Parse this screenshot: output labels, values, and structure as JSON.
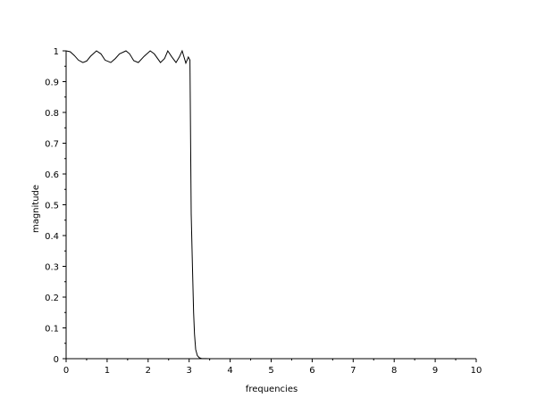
{
  "chart_data": {
    "type": "line",
    "title": "",
    "xlabel": "frequencies",
    "ylabel": "magnitude",
    "xlim": [
      0,
      10
    ],
    "ylim": [
      0,
      1
    ],
    "grid": false,
    "x_ticks": [
      "0",
      "1",
      "2",
      "3",
      "4",
      "5",
      "6",
      "7",
      "8",
      "9",
      "10"
    ],
    "y_ticks": [
      "0",
      "0.1",
      "0.2",
      "0.3",
      "0.4",
      "0.5",
      "0.6",
      "0.7",
      "0.8",
      "0.9",
      "1"
    ],
    "line_color": "#000000",
    "series": [
      {
        "x": [
          0,
          0.1,
          0.2,
          0.3,
          0.41,
          0.5,
          0.6,
          0.74,
          0.85,
          0.95,
          1.09,
          1.2,
          1.3,
          1.46,
          1.55,
          1.65,
          1.76,
          1.9,
          2.05,
          2.15,
          2.3,
          2.4,
          2.48,
          2.58,
          2.68,
          2.76,
          2.83,
          2.92,
          2.98,
          3.02,
          3.05,
          3.08,
          3.11,
          3.13,
          3.16,
          3.2,
          3.25,
          3.3,
          3.5,
          4,
          5,
          6,
          7,
          8,
          9,
          10
        ],
        "y": [
          1,
          0.997,
          0.985,
          0.97,
          0.962,
          0.967,
          0.983,
          1,
          0.99,
          0.97,
          0.962,
          0.975,
          0.99,
          1,
          0.99,
          0.968,
          0.962,
          0.982,
          1,
          0.99,
          0.962,
          0.975,
          1,
          0.98,
          0.962,
          0.98,
          1,
          0.96,
          0.98,
          0.97,
          0.47,
          0.3,
          0.15,
          0.08,
          0.03,
          0.01,
          0.003,
          0.001,
          0,
          0,
          0,
          0,
          0,
          0,
          0,
          0
        ]
      }
    ]
  }
}
